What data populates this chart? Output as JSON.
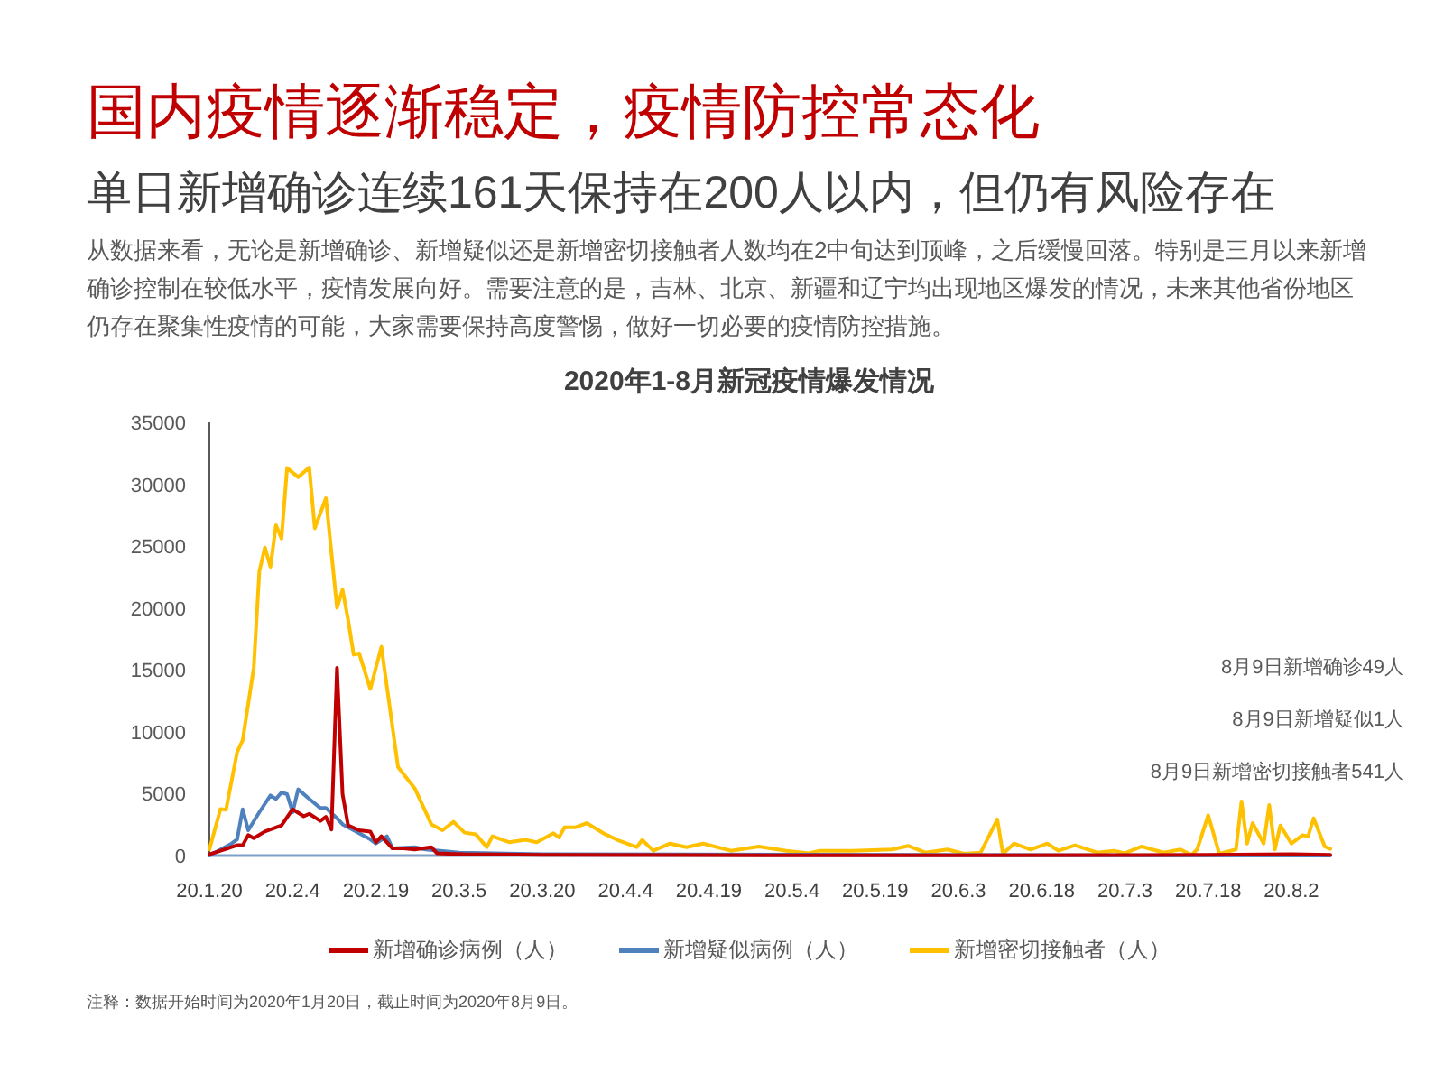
{
  "chart_data": {
    "type": "line",
    "title": "国内疫情逐渐稳定，疫情防控常态化",
    "subtitle": "单日新增确诊连续161天保持在200人以内，但仍有风险存在",
    "annotations": [
      "从数据来看，无论是新增确诊、新增疑似还是新增密切接触者人数均在2中旬达到顶峰，之后缓慢回落。特别是三月以来新增确诊控制在较低水平，疫情发展向好。需要注意的是，吉林、北京、新疆和辽宁均出现地区爆发的情况，未来其他省份地区仍存在聚集性疫情的可能，大家需要保持高度警惕，做好一切必要的疫情防控措施。",
      "2020年1-8月新冠疫情爆发情况",
      "8月9日新增确诊49人",
      "8月9日新增疑似1人",
      "8月9日新增密切接触者541人",
      "注释：数据开始时间为2020年1月20日，截止时间为2020年8月9日。"
    ],
    "xlim": [
      "2020-01-20",
      "2020-08-09"
    ],
    "xticks": [
      {
        "value": "2020-01-20",
        "label": "20.1.20"
      },
      {
        "value": "2020-02-04",
        "label": "20.2.4"
      },
      {
        "value": "2020-02-19",
        "label": "20.2.19"
      },
      {
        "value": "2020-03-05",
        "label": "20.3.5"
      },
      {
        "value": "2020-03-20",
        "label": "20.3.20"
      },
      {
        "value": "2020-04-04",
        "label": "20.4.4"
      },
      {
        "value": "2020-04-19",
        "label": "20.4.19"
      },
      {
        "value": "2020-05-04",
        "label": "20.5.4"
      },
      {
        "value": "2020-05-19",
        "label": "20.5.19"
      },
      {
        "value": "2020-06-03",
        "label": "20.6.3"
      },
      {
        "value": "2020-06-18",
        "label": "20.6.18"
      },
      {
        "value": "2020-07-03",
        "label": "20.7.3"
      },
      {
        "value": "2020-07-18",
        "label": "20.7.18"
      },
      {
        "value": "2020-08-02",
        "label": "20.8.2"
      }
    ],
    "ylim": [
      0,
      35000
    ],
    "yticks": [
      0,
      5000,
      10000,
      15000,
      20000,
      25000,
      30000,
      35000
    ],
    "grid": false,
    "legend": "bottom",
    "line_style": "solid",
    "series": [
      {
        "name": "新增确诊病例（人）",
        "color": "#c00000",
        "x": [
          "2020-01-20",
          "2020-01-25",
          "2020-01-26",
          "2020-01-27",
          "2020-01-28",
          "2020-01-30",
          "2020-02-02",
          "2020-02-04",
          "2020-02-06",
          "2020-02-07",
          "2020-02-09",
          "2020-02-10",
          "2020-02-11",
          "2020-02-12",
          "2020-02-13",
          "2020-02-14",
          "2020-02-16",
          "2020-02-18",
          "2020-02-19",
          "2020-02-20",
          "2020-02-22",
          "2020-02-24",
          "2020-02-26",
          "2020-02-29",
          "2020-03-01",
          "2020-03-06",
          "2020-03-20",
          "2020-04-29",
          "2020-06-08",
          "2020-07-18",
          "2020-08-02",
          "2020-08-09"
        ],
        "values": [
          100,
          830,
          830,
          1650,
          1410,
          1940,
          2430,
          3740,
          3170,
          3370,
          2800,
          3130,
          2100,
          15170,
          4960,
          2430,
          2040,
          1940,
          1070,
          1560,
          580,
          580,
          490,
          680,
          190,
          100,
          50,
          20,
          20,
          50,
          100,
          49
        ]
      },
      {
        "name": "新增疑似病例（人）",
        "color": "#4f81bd",
        "x": [
          "2020-01-20",
          "2020-01-24",
          "2020-01-25",
          "2020-01-26",
          "2020-01-27",
          "2020-01-29",
          "2020-01-31",
          "2020-02-01",
          "2020-02-02",
          "2020-02-03",
          "2020-02-04",
          "2020-02-05",
          "2020-02-07",
          "2020-02-09",
          "2020-02-10",
          "2020-02-12",
          "2020-02-13",
          "2020-02-15",
          "2020-02-18",
          "2020-02-19",
          "2020-02-21",
          "2020-02-22",
          "2020-02-26",
          "2020-02-28",
          "2020-03-05",
          "2020-03-20",
          "2020-08-09"
        ],
        "values": [
          0,
          970,
          1310,
          3740,
          2040,
          3500,
          4860,
          4570,
          5100,
          4960,
          3500,
          5350,
          4570,
          3840,
          3840,
          3010,
          2520,
          2040,
          1310,
          970,
          1560,
          580,
          680,
          490,
          240,
          100,
          1
        ]
      },
      {
        "name": "新增密切接触者（人）",
        "color": "#ffc000",
        "x": [
          "2020-01-20",
          "2020-01-22",
          "2020-01-23",
          "2020-01-25",
          "2020-01-26",
          "2020-01-28",
          "2020-01-29",
          "2020-01-30",
          "2020-01-31",
          "2020-02-01",
          "2020-02-02",
          "2020-02-03",
          "2020-02-05",
          "2020-02-07",
          "2020-02-08",
          "2020-02-10",
          "2020-02-12",
          "2020-02-13",
          "2020-02-14",
          "2020-02-15",
          "2020-02-16",
          "2020-02-18",
          "2020-02-20",
          "2020-02-23",
          "2020-02-26",
          "2020-02-29",
          "2020-03-02",
          "2020-03-04",
          "2020-03-06",
          "2020-03-08",
          "2020-03-10",
          "2020-03-11",
          "2020-03-14",
          "2020-03-17",
          "2020-03-19",
          "2020-03-22",
          "2020-03-23",
          "2020-03-24",
          "2020-03-26",
          "2020-03-28",
          "2020-03-31",
          "2020-04-03",
          "2020-04-06",
          "2020-04-07",
          "2020-04-09",
          "2020-04-12",
          "2020-04-15",
          "2020-04-18",
          "2020-04-23",
          "2020-04-28",
          "2020-05-03",
          "2020-05-07",
          "2020-05-09",
          "2020-05-15",
          "2020-05-22",
          "2020-05-25",
          "2020-05-28",
          "2020-06-01",
          "2020-06-04",
          "2020-06-07",
          "2020-06-10",
          "2020-06-11",
          "2020-06-13",
          "2020-06-16",
          "2020-06-19",
          "2020-06-21",
          "2020-06-24",
          "2020-06-28",
          "2020-07-01",
          "2020-07-03",
          "2020-07-06",
          "2020-07-10",
          "2020-07-13",
          "2020-07-15",
          "2020-07-16",
          "2020-07-18",
          "2020-07-20",
          "2020-07-23",
          "2020-07-24",
          "2020-07-25",
          "2020-07-26",
          "2020-07-28",
          "2020-07-29",
          "2020-07-30",
          "2020-07-31",
          "2020-08-02",
          "2020-08-04",
          "2020-08-05",
          "2020-08-06",
          "2020-08-08",
          "2020-08-09"
        ],
        "values": [
          500,
          3750,
          3700,
          8360,
          9330,
          15170,
          22940,
          24890,
          23330,
          26690,
          25620,
          31310,
          30580,
          31350,
          26440,
          28870,
          20020,
          21480,
          19060,
          16230,
          16330,
          13460,
          16870,
          7150,
          5440,
          2520,
          2040,
          2720,
          1850,
          1720,
          680,
          1560,
          1080,
          1270,
          1070,
          1800,
          1460,
          2280,
          2280,
          2620,
          1800,
          1170,
          680,
          1260,
          390,
          970,
          680,
          970,
          390,
          730,
          390,
          190,
          390,
          390,
          490,
          780,
          240,
          490,
          150,
          240,
          2920,
          150,
          970,
          490,
          970,
          390,
          830,
          240,
          390,
          190,
          730,
          240,
          490,
          50,
          490,
          3260,
          150,
          490,
          4380,
          970,
          2620,
          970,
          4080,
          490,
          2430,
          970,
          1650,
          1550,
          3010,
          730,
          541
        ]
      }
    ]
  }
}
